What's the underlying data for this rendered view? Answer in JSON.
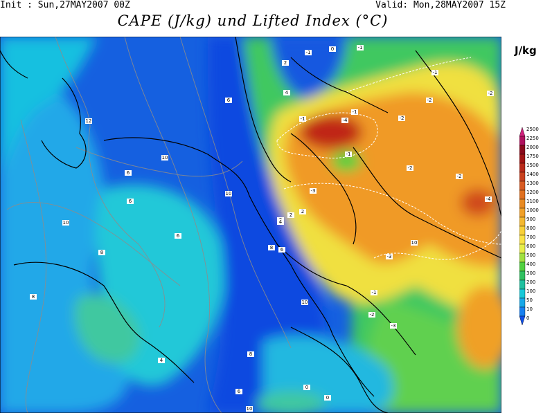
{
  "header": {
    "init": "Init : Sun,27MAY2007 00Z",
    "valid": "Valid: Mon,28MAY2007 15Z",
    "title": "CAPE (J/kg) und Lifted Index (°C)"
  },
  "legend": {
    "unit": "J/kg",
    "levels": [
      "2500",
      "2250",
      "2000",
      "1750",
      "1500",
      "1400",
      "1300",
      "1200",
      "1100",
      "1000",
      "900",
      "800",
      "700",
      "600",
      "500",
      "400",
      "300",
      "200",
      "100",
      "50",
      "10",
      "0"
    ],
    "colors": [
      "#d0207c",
      "#b0125e",
      "#8a0a1c",
      "#a01414",
      "#b82a1a",
      "#c8401e",
      "#d85a22",
      "#e07020",
      "#e88a22",
      "#f0a028",
      "#f4b830",
      "#f8d038",
      "#fae244",
      "#e8ee4a",
      "#a0e040",
      "#50d040",
      "#30c060",
      "#20c0a0",
      "#18c8d8",
      "#18a8e8",
      "#1880f0",
      "#1050e8"
    ]
  },
  "map": {
    "lifted_index_labels": [
      "-4",
      "-4",
      "-3",
      "-3",
      "-2",
      "-2",
      "-2",
      "-2",
      "-2",
      "-1",
      "-1",
      "-1",
      "-1",
      "-2",
      "-3",
      "-1",
      "-1",
      "-1",
      "0",
      "0",
      "0",
      "2",
      "2",
      "2",
      "2",
      "4",
      "4",
      "4",
      "6",
      "6",
      "6",
      "6",
      "6",
      "6",
      "8",
      "8",
      "8",
      "8",
      "10",
      "10",
      "10",
      "10",
      "10",
      "10",
      "12"
    ]
  }
}
